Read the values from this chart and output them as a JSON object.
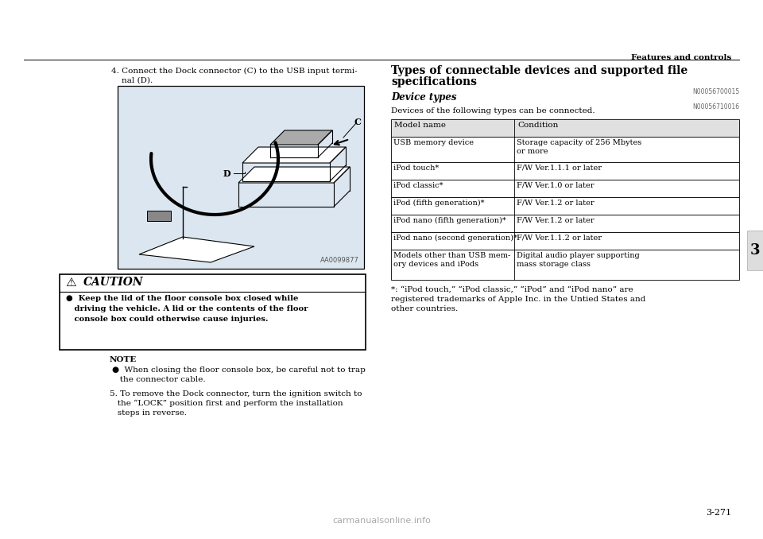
{
  "bg_color": "#ffffff",
  "page_width": 9.6,
  "page_height": 6.78,
  "header_text": "Features and controls",
  "page_number": "3-271",
  "chapter_number": "3",
  "step4_text_1": "4. Connect the Dock connector (C) to the USB input termi-",
  "step4_text_2": "nal (D).",
  "image_code": "AA0099877",
  "caution_title": "CAUTION",
  "caution_text_line1": "●  Keep the lid of the floor console box closed while",
  "caution_text_line2": "   driving the vehicle. A lid or the contents of the floor",
  "caution_text_line3": "   console box could otherwise cause injuries.",
  "note_title": "NOTE",
  "note_bullet": "●  When closing the floor console box, be careful not to trap",
  "note_text2": "   the connector cable.",
  "step5_text_1": "5. To remove the Dock connector, turn the ignition switch to",
  "step5_text_2": "   the “LOCK” position first and perform the installation",
  "step5_text_3": "   steps in reverse.",
  "section_title_1": "Types of connectable devices and supported file",
  "section_title_2": "specifications",
  "ref_code1": "N00056700015",
  "device_types_title": "Device types",
  "ref_code2": "N00056710016",
  "intro_text": "Devices of the following types can be connected.",
  "table_header_1": "Model name",
  "table_header_2": "Condition",
  "table_rows": [
    [
      "USB memory device",
      "Storage capacity of 256 Mbytes\nor more"
    ],
    [
      "iPod touch*",
      "F/W Ver.1.1.1 or later"
    ],
    [
      "iPod classic*",
      "F/W Ver.1.0 or later"
    ],
    [
      "iPod (fifth generation)*",
      "F/W Ver.1.2 or later"
    ],
    [
      "iPod nano (fifth generation)*",
      "F/W Ver.1.2 or later"
    ],
    [
      "iPod nano (second generation)*",
      "F/W Ver.1.1.2 or later"
    ],
    [
      "Models other than USB mem-\nory devices and iPods",
      "Digital audio player supporting\nmass storage class"
    ]
  ],
  "footnote_1": "*: “iPod touch,” “iPod classic,” “iPod” and “iPod nano” are",
  "footnote_2": "registered trademarks of Apple Inc. in the Untied States and",
  "footnote_3": "other countries.",
  "watermark_text": "carmanualsonline.info"
}
